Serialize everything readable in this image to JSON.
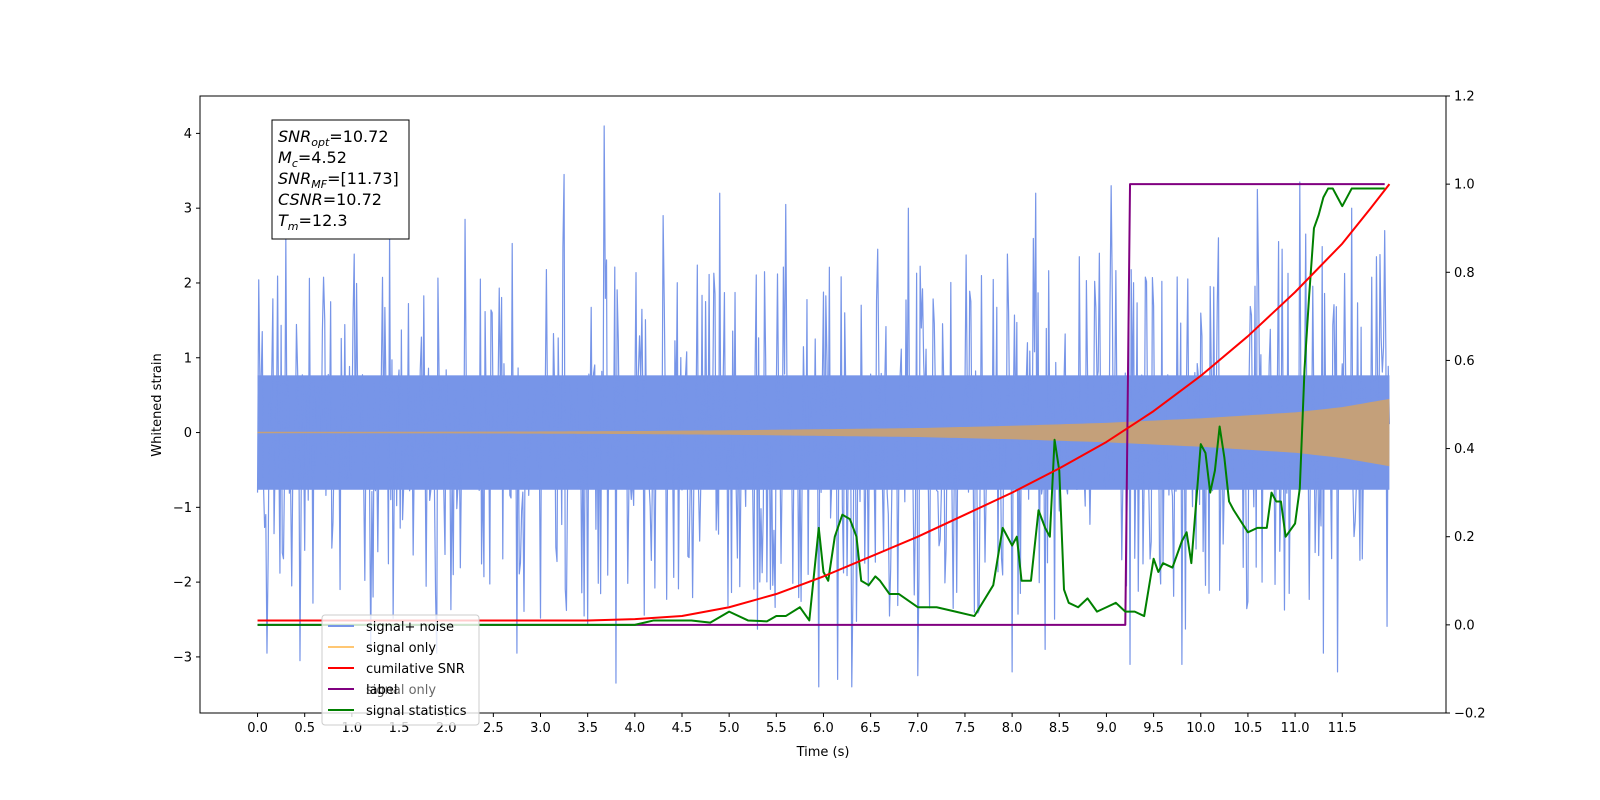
{
  "chart_data": {
    "type": "line",
    "xlabel": "Time (s)",
    "ylabel": "Whitened strain",
    "xlim": [
      -0.61,
      12.6
    ],
    "ylim": [
      -3.75,
      4.5
    ],
    "y2lim": [
      -0.2,
      1.2
    ],
    "x_ticks": [
      0.0,
      0.5,
      1.0,
      1.5,
      2.0,
      2.5,
      3.0,
      3.5,
      4.0,
      4.5,
      5.0,
      5.5,
      6.0,
      6.5,
      7.0,
      7.5,
      8.0,
      8.5,
      9.0,
      9.5,
      10.0,
      10.5,
      11.0,
      11.5
    ],
    "x_tick_labels": [
      "0.0",
      "0.5",
      "1.0",
      "1.5",
      "2.0",
      "2.5",
      "3.0",
      "3.5",
      "4.0",
      "4.5",
      "5.0",
      "5.5",
      "6.0",
      "6.5",
      "7.0",
      "7.5",
      "8.0",
      "8.5",
      "9.0",
      "9.5",
      "10.0",
      "10.5",
      "11.0",
      "11.5"
    ],
    "y_ticks": [
      -3,
      -2,
      -1,
      0,
      1,
      2,
      3,
      4
    ],
    "y_tick_labels": [
      "−3",
      "−2",
      "−1",
      "0",
      "1",
      "2",
      "3",
      "4"
    ],
    "y2_ticks": [
      -0.2,
      0.0,
      0.2,
      0.4,
      0.6,
      0.8,
      1.0,
      1.2
    ],
    "y2_tick_labels": [
      "−0.2",
      "0.0",
      "0.2",
      "0.4",
      "0.6",
      "0.8",
      "1.0",
      "1.2"
    ],
    "grid": false,
    "legend_position": "lower-left",
    "annotation": {
      "lines": [
        {
          "base": "SNR",
          "sub": "opt",
          "value": "=10.72"
        },
        {
          "base": "M",
          "sub": "c",
          "value": "=4.52"
        },
        {
          "base": "SNR",
          "sub": "MF",
          "value": "=[11.73]"
        },
        {
          "base": "CSNR",
          "sub": "",
          "value": "=10.72"
        },
        {
          "base": "T",
          "sub": "m",
          "value": "=12.3"
        }
      ]
    },
    "series": [
      {
        "name": "signal+ noise",
        "color": "#7795e8",
        "axis": "left",
        "style": "noise",
        "envelope": {
          "x": [
            0.0,
            1.0,
            2.0,
            3.0,
            4.0,
            5.0,
            6.0,
            7.0,
            8.0,
            9.0,
            10.0,
            11.0,
            12.0
          ],
          "upper": [
            2.3,
            2.4,
            2.5,
            2.6,
            2.5,
            2.6,
            2.6,
            2.5,
            2.6,
            2.6,
            2.6,
            2.7,
            2.5
          ],
          "lower": [
            -2.6,
            -2.6,
            -2.6,
            -2.6,
            -2.7,
            -2.7,
            -2.8,
            -2.7,
            -2.7,
            -2.7,
            -2.7,
            -2.6,
            -2.6
          ],
          "core": 0.85
        },
        "peaks": [
          {
            "x": 0.1,
            "y": -2.95
          },
          {
            "x": 0.45,
            "y": -3.05
          },
          {
            "x": 0.3,
            "y": 2.6
          },
          {
            "x": 1.2,
            "y": -2.9
          },
          {
            "x": 1.4,
            "y": 2.7
          },
          {
            "x": 1.9,
            "y": -2.95
          },
          {
            "x": 2.2,
            "y": 2.85
          },
          {
            "x": 2.75,
            "y": -2.95
          },
          {
            "x": 3.25,
            "y": 3.45
          },
          {
            "x": 3.67,
            "y": 4.1
          },
          {
            "x": 3.8,
            "y": -3.35
          },
          {
            "x": 4.3,
            "y": 2.9
          },
          {
            "x": 4.9,
            "y": 3.2
          },
          {
            "x": 5.6,
            "y": 3.05
          },
          {
            "x": 5.95,
            "y": -3.4
          },
          {
            "x": 6.15,
            "y": -3.3
          },
          {
            "x": 6.3,
            "y": -3.4
          },
          {
            "x": 6.9,
            "y": 3.0
          },
          {
            "x": 7.0,
            "y": -3.25
          },
          {
            "x": 8.0,
            "y": -3.2
          },
          {
            "x": 8.25,
            "y": 3.2
          },
          {
            "x": 8.35,
            "y": -2.9
          },
          {
            "x": 9.05,
            "y": 3.3
          },
          {
            "x": 9.25,
            "y": -3.1
          },
          {
            "x": 9.8,
            "y": -3.1
          },
          {
            "x": 10.6,
            "y": 3.25
          },
          {
            "x": 11.05,
            "y": 3.35
          },
          {
            "x": 11.3,
            "y": -2.95
          },
          {
            "x": 11.45,
            "y": -3.2
          },
          {
            "x": 11.6,
            "y": 3.0
          },
          {
            "x": 11.95,
            "y": -2.95
          },
          {
            "x": 11.95,
            "y": 2.7
          }
        ]
      },
      {
        "name": "signal only",
        "color": "#c4a07a",
        "axis": "left",
        "style": "chirp",
        "envelope": {
          "x": [
            0.0,
            2.0,
            4.0,
            5.0,
            6.0,
            7.0,
            8.0,
            9.0,
            10.0,
            11.0,
            11.5,
            12.0
          ],
          "amplitude": [
            0.005,
            0.01,
            0.02,
            0.03,
            0.045,
            0.06,
            0.09,
            0.13,
            0.19,
            0.27,
            0.34,
            0.45
          ]
        }
      },
      {
        "name": "cumilative SNR",
        "color": "#ff0000",
        "axis": "right",
        "x": [
          0.0,
          1.0,
          2.0,
          3.0,
          3.5,
          4.0,
          4.5,
          5.0,
          5.5,
          6.0,
          6.5,
          7.0,
          7.5,
          8.0,
          8.5,
          9.0,
          9.5,
          10.0,
          10.5,
          11.0,
          11.5,
          11.8,
          12.0
        ],
        "y": [
          0.01,
          0.01,
          0.01,
          0.01,
          0.01,
          0.013,
          0.02,
          0.04,
          0.07,
          0.11,
          0.155,
          0.2,
          0.25,
          0.3,
          0.355,
          0.415,
          0.485,
          0.565,
          0.655,
          0.755,
          0.865,
          0.945,
          1.0
        ]
      },
      {
        "name": "label",
        "color": "#800080",
        "axis": "right",
        "x": [
          0.0,
          9.2,
          9.25,
          11.95
        ],
        "y": [
          0.0,
          0.0,
          1.0,
          1.0
        ]
      },
      {
        "name": "signal statistics",
        "color": "#008000",
        "axis": "right",
        "x": [
          0.0,
          4.0,
          4.2,
          4.4,
          4.6,
          4.8,
          5.0,
          5.2,
          5.4,
          5.5,
          5.6,
          5.75,
          5.85,
          5.95,
          6.0,
          6.05,
          6.12,
          6.2,
          6.28,
          6.35,
          6.4,
          6.48,
          6.55,
          6.6,
          6.7,
          6.8,
          7.0,
          7.2,
          7.4,
          7.6,
          7.8,
          7.9,
          7.95,
          8.0,
          8.05,
          8.1,
          8.2,
          8.28,
          8.35,
          8.4,
          8.45,
          8.5,
          8.55,
          8.6,
          8.7,
          8.8,
          8.9,
          9.0,
          9.1,
          9.2,
          9.3,
          9.4,
          9.5,
          9.55,
          9.6,
          9.7,
          9.8,
          9.85,
          9.9,
          10.0,
          10.05,
          10.1,
          10.15,
          10.2,
          10.25,
          10.3,
          10.35,
          10.5,
          10.6,
          10.7,
          10.75,
          10.8,
          10.85,
          10.9,
          11.0,
          11.05,
          11.1,
          11.15,
          11.2,
          11.25,
          11.3,
          11.35,
          11.4,
          11.45,
          11.5,
          11.6,
          11.65,
          11.7,
          11.8,
          11.9,
          11.95
        ],
        "y": [
          0.0,
          0.0,
          0.01,
          0.01,
          0.01,
          0.005,
          0.03,
          0.01,
          0.008,
          0.02,
          0.02,
          0.04,
          0.01,
          0.22,
          0.12,
          0.1,
          0.2,
          0.25,
          0.24,
          0.2,
          0.1,
          0.09,
          0.11,
          0.1,
          0.07,
          0.07,
          0.04,
          0.04,
          0.03,
          0.02,
          0.09,
          0.22,
          0.2,
          0.18,
          0.2,
          0.1,
          0.1,
          0.26,
          0.22,
          0.2,
          0.42,
          0.35,
          0.08,
          0.05,
          0.04,
          0.06,
          0.03,
          0.04,
          0.05,
          0.03,
          0.03,
          0.02,
          0.15,
          0.12,
          0.14,
          0.13,
          0.19,
          0.21,
          0.14,
          0.41,
          0.39,
          0.3,
          0.35,
          0.45,
          0.38,
          0.28,
          0.26,
          0.21,
          0.22,
          0.22,
          0.3,
          0.28,
          0.28,
          0.2,
          0.23,
          0.31,
          0.58,
          0.75,
          0.9,
          0.93,
          0.97,
          0.99,
          0.99,
          0.97,
          0.95,
          0.99,
          0.99,
          0.99,
          0.99,
          0.99,
          0.99
        ]
      }
    ],
    "legend": [
      {
        "label": "signal+ noise",
        "color": "#7795e8"
      },
      {
        "label": "signal only",
        "color": "#ffc773"
      },
      {
        "label": "cumilative SNR",
        "color": "#ff0000"
      },
      {
        "label": "label",
        "color": "#800080"
      },
      {
        "label": "signal statistics",
        "color": "#008000"
      }
    ],
    "legend_overlap_text": "signal only"
  }
}
